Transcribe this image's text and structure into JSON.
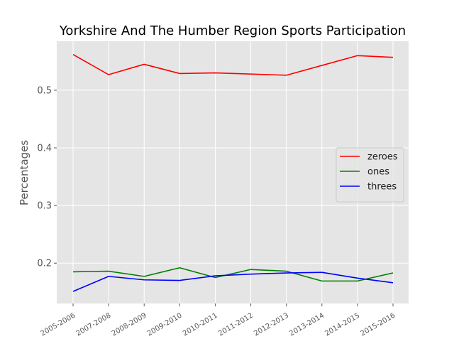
{
  "chart_data": {
    "type": "line",
    "title": "Yorkshire And The Humber Region Sports Participation",
    "xlabel": "",
    "ylabel": "Percentages",
    "categories": [
      "2005-2006",
      "2007-2008",
      "2008-2009",
      "2009-2010",
      "2010-2011",
      "2011-2012",
      "2012-2013",
      "2013-2014",
      "2014-2015",
      "2015-2016"
    ],
    "ylim": [
      0.13,
      0.585
    ],
    "yticks": [
      "0.2",
      "0.3",
      "0.4",
      "0.5"
    ],
    "grid": true,
    "legend_position": "right",
    "series": [
      {
        "name": "zeroes",
        "color": "#ff0000",
        "values": [
          0.562,
          0.527,
          0.545,
          0.529,
          0.53,
          0.528,
          0.526,
          0.543,
          0.56,
          0.557
        ]
      },
      {
        "name": "ones",
        "color": "#008000",
        "values": [
          0.185,
          0.186,
          0.177,
          0.192,
          0.175,
          0.189,
          0.186,
          0.169,
          0.169,
          0.183
        ]
      },
      {
        "name": "threes",
        "color": "#0000ff",
        "values": [
          0.151,
          0.177,
          0.171,
          0.17,
          0.178,
          0.181,
          0.183,
          0.184,
          0.174,
          0.166
        ]
      }
    ]
  }
}
